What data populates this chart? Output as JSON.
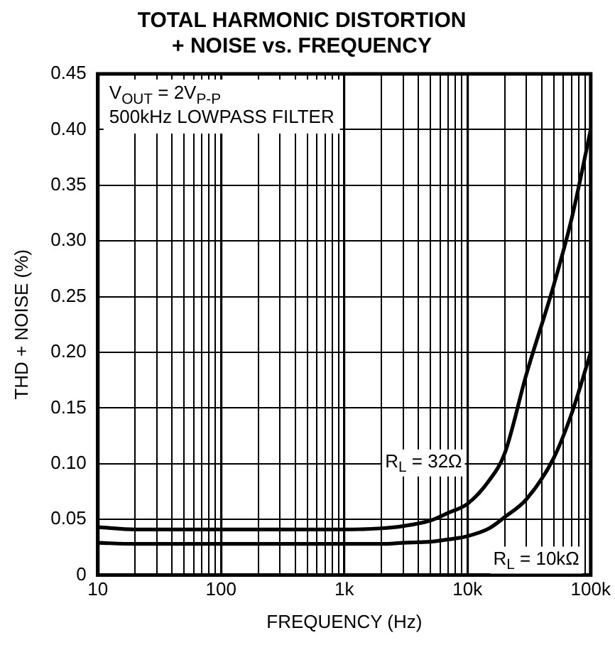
{
  "chart_data": {
    "type": "line",
    "title": "TOTAL HARMONIC DISTORTION\n+ NOISE vs. FREQUENCY",
    "xlabel": "FREQUENCY (Hz)",
    "ylabel": "THD + NOISE (%)",
    "log": "x",
    "x": [
      10,
      20,
      50,
      100,
      200,
      500,
      1000,
      2000,
      3000,
      5000,
      7000,
      10000,
      15000,
      20000,
      30000,
      50000,
      70000,
      100000
    ],
    "series": [
      {
        "name": "R$_{L}$ = 32Ω",
        "color": "#000000",
        "values": [
          0.043,
          0.041,
          0.041,
          0.041,
          0.041,
          0.041,
          0.041,
          0.042,
          0.044,
          0.049,
          0.056,
          0.064,
          0.085,
          0.109,
          0.18,
          0.26,
          0.32,
          0.4
        ]
      },
      {
        "name": "R$_{L}$ = 10kΩ",
        "color": "#000000",
        "values": [
          0.029,
          0.028,
          0.028,
          0.028,
          0.028,
          0.028,
          0.028,
          0.028,
          0.029,
          0.03,
          0.032,
          0.035,
          0.042,
          0.052,
          0.068,
          0.105,
          0.145,
          0.2
        ]
      }
    ],
    "xlim": [
      10,
      100000
    ],
    "xticks": [
      {
        "value": 10,
        "label": "10"
      },
      {
        "value": 20,
        "label": null
      },
      {
        "value": 30,
        "label": null
      },
      {
        "value": 40,
        "label": null
      },
      {
        "value": 50,
        "label": null
      },
      {
        "value": 60,
        "label": null
      },
      {
        "value": 70,
        "label": null
      },
      {
        "value": 80,
        "label": null
      },
      {
        "value": 90,
        "label": null
      },
      {
        "value": 100,
        "label": "100"
      },
      {
        "value": 200,
        "label": null
      },
      {
        "value": 300,
        "label": null
      },
      {
        "value": 400,
        "label": null
      },
      {
        "value": 500,
        "label": null
      },
      {
        "value": 600,
        "label": null
      },
      {
        "value": 700,
        "label": null
      },
      {
        "value": 800,
        "label": null
      },
      {
        "value": 900,
        "label": null
      },
      {
        "value": 1000,
        "label": "1k"
      },
      {
        "value": 2000,
        "label": null
      },
      {
        "value": 3000,
        "label": null
      },
      {
        "value": 4000,
        "label": null
      },
      {
        "value": 5000,
        "label": null
      },
      {
        "value": 6000,
        "label": null
      },
      {
        "value": 7000,
        "label": null
      },
      {
        "value": 8000,
        "label": null
      },
      {
        "value": 9000,
        "label": null
      },
      {
        "value": 10000,
        "label": "10k"
      },
      {
        "value": 20000,
        "label": null
      },
      {
        "value": 30000,
        "label": null
      },
      {
        "value": 40000,
        "label": null
      },
      {
        "value": 50000,
        "label": null
      },
      {
        "value": 60000,
        "label": null
      },
      {
        "value": 70000,
        "label": null
      },
      {
        "value": 80000,
        "label": null
      },
      {
        "value": 90000,
        "label": null
      },
      {
        "value": 100000,
        "label": "100k"
      }
    ],
    "ylim": [
      0,
      0.45
    ],
    "yticks": [
      {
        "value": 0,
        "label": "0"
      },
      {
        "value": 0.05,
        "label": "0.05"
      },
      {
        "value": 0.1,
        "label": "0.10"
      },
      {
        "value": 0.15,
        "label": "0.15"
      },
      {
        "value": 0.2,
        "label": "0.20"
      },
      {
        "value": 0.25,
        "label": "0.25"
      },
      {
        "value": 0.3,
        "label": "0.30"
      },
      {
        "value": 0.35,
        "label": "0.35"
      },
      {
        "value": 0.4,
        "label": "0.40"
      },
      {
        "value": 0.45,
        "label": "0.45"
      }
    ],
    "grid": true,
    "legend": false,
    "marker": "none",
    "line_style": "solid",
    "annotations": [
      "V$_{OUT}$ = 2V$_{P-P}$\n500kHz LOWPASS FILTER"
    ]
  }
}
